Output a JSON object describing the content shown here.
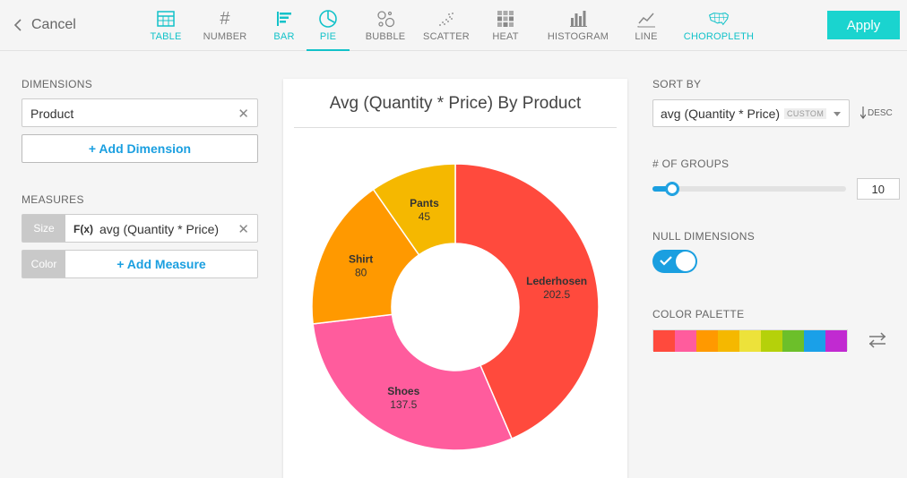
{
  "header": {
    "cancel_label": "Cancel",
    "apply_label": "Apply",
    "tabs": [
      {
        "label": "TABLE",
        "icon": "table-icon"
      },
      {
        "label": "NUMBER",
        "icon": "number-icon"
      },
      {
        "label": "BAR",
        "icon": "bar-icon"
      },
      {
        "label": "PIE",
        "icon": "pie-icon"
      },
      {
        "label": "BUBBLE",
        "icon": "bubble-icon"
      },
      {
        "label": "SCATTER",
        "icon": "scatter-icon"
      },
      {
        "label": "HEAT",
        "icon": "heat-icon"
      },
      {
        "label": "HISTOGRAM",
        "icon": "histogram-icon"
      },
      {
        "label": "LINE",
        "icon": "line-icon"
      },
      {
        "label": "CHOROPLETH",
        "icon": "choropleth-icon"
      }
    ],
    "active_tab": "PIE"
  },
  "left": {
    "dimensions_label": "DIMENSIONS",
    "dimension_value": "Product",
    "add_dimension_label": "+ Add Dimension",
    "measures_label": "MEASURES",
    "size_tag": "Size",
    "fx_label": "F(x)",
    "measure_value": "avg (Quantity * Price)",
    "color_tag": "Color",
    "add_measure_label": "+ Add Measure"
  },
  "right": {
    "sort_by_label": "SORT BY",
    "sort_value": "avg (Quantity * Price)",
    "sort_badge": "CUSTOM",
    "desc_label": "DESC",
    "groups_label": "# OF GROUPS",
    "groups_value": "10",
    "groups_max": 100,
    "null_dimensions_label": "NULL DIMENSIONS",
    "null_dimensions_on": true,
    "palette_label": "COLOR PALETTE",
    "palette": [
      "#ff4a3d",
      "#ff5c9d",
      "#ff9900",
      "#f5b800",
      "#ede23a",
      "#b5d10a",
      "#6cbf2a",
      "#1aa0e8",
      "#c12ad1"
    ]
  },
  "chart_data": {
    "type": "pie",
    "title": "Avg (Quantity * Price) By Product",
    "donut": true,
    "categories": [
      "Lederhosen",
      "Shoes",
      "Shirt",
      "Pants"
    ],
    "values": [
      202.5,
      137.5,
      80,
      45
    ],
    "value_labels": [
      "202.5",
      "137.5",
      "80",
      "45"
    ],
    "colors": [
      "#ff4a3d",
      "#ff5c9d",
      "#ff9900",
      "#f5b800"
    ]
  }
}
